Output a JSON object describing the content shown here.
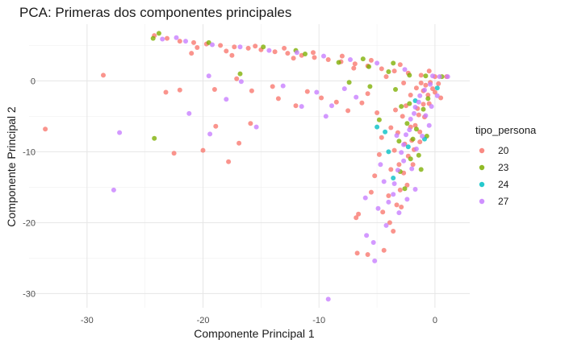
{
  "chart_data": {
    "type": "scatter",
    "title": "PCA: Primeras dos componentes principales",
    "xlabel": "Componente Principal 1",
    "ylabel": "Componente Principal 2",
    "xlim": [
      -35,
      3
    ],
    "ylim": [
      -32,
      8
    ],
    "xticks": [
      -30,
      -20,
      -10,
      0
    ],
    "yticks": [
      0,
      -10,
      -20,
      -30
    ],
    "grid": true,
    "legend": {
      "title": "tipo_persona",
      "position": "right"
    },
    "series": [
      {
        "name": "20",
        "color": "#F8766D",
        "points": [
          [
            -33.6,
            -6.8
          ],
          [
            -28.6,
            0.8
          ],
          [
            -22.5,
            -10.2
          ],
          [
            -20.0,
            -9.8
          ],
          [
            -18.9,
            -6.4
          ],
          [
            -17.8,
            -11.4
          ],
          [
            -16.9,
            -8.8
          ],
          [
            -15.9,
            -6.0
          ],
          [
            -23.2,
            -1.6
          ],
          [
            -22.0,
            -1.3
          ],
          [
            -19.0,
            -1.2
          ],
          [
            -17.1,
            0.3
          ],
          [
            -15.8,
            -1.4
          ],
          [
            -14.0,
            -0.8
          ],
          [
            -13.5,
            -2.5
          ],
          [
            -12.0,
            -3.5
          ],
          [
            -11.0,
            -1.5
          ],
          [
            -9.8,
            -2.4
          ],
          [
            -8.5,
            -3.0
          ],
          [
            -7.5,
            -4.2
          ],
          [
            -6.3,
            -3.1
          ],
          [
            -5.8,
            -1.8
          ],
          [
            -5.0,
            -4.5
          ],
          [
            -5.8,
            -24.5
          ],
          [
            -6.7,
            -24.3
          ],
          [
            -6.8,
            -19.3
          ],
          [
            -6.6,
            -18.8
          ],
          [
            -5.5,
            -15.7
          ],
          [
            -5.2,
            -13.4
          ],
          [
            -4.4,
            -23.9
          ],
          [
            -4.5,
            -18.5
          ],
          [
            -4.0,
            -16.2
          ],
          [
            -3.8,
            -12.5
          ],
          [
            -3.5,
            -9.8
          ],
          [
            -3.2,
            -7.3
          ],
          [
            -2.8,
            -5.0
          ],
          [
            -2.5,
            -3.5
          ],
          [
            -2.1,
            -2.0
          ],
          [
            -1.6,
            -1.0
          ],
          [
            -1.2,
            -0.3
          ],
          [
            -0.8,
            -0.6
          ],
          [
            -0.4,
            -0.2
          ],
          [
            -3.6,
            -21.2
          ],
          [
            -3.9,
            -20.0
          ],
          [
            -3.3,
            -17.5
          ],
          [
            -3.0,
            -15.4
          ],
          [
            -2.7,
            -13.0
          ],
          [
            -2.3,
            -10.6
          ],
          [
            -2.0,
            -8.4
          ],
          [
            -1.7,
            -6.3
          ],
          [
            -1.4,
            -4.8
          ],
          [
            -1.0,
            -3.3
          ],
          [
            -0.6,
            -2.0
          ],
          [
            -0.2,
            -1.1
          ],
          [
            0.3,
            -0.4
          ],
          [
            -3.1,
            -11.8
          ],
          [
            -2.6,
            -8.9
          ],
          [
            -2.1,
            -6.5
          ],
          [
            -1.5,
            -3.9
          ],
          [
            -1.8,
            -9.7
          ],
          [
            -1.3,
            -7.2
          ],
          [
            -0.9,
            -5.1
          ],
          [
            -0.5,
            -3.2
          ],
          [
            0.0,
            -1.6
          ],
          [
            -2.9,
            -17.8
          ],
          [
            -2.4,
            -14.7
          ],
          [
            -1.9,
            -11.8
          ],
          [
            -1.3,
            -8.6
          ],
          [
            -24.2,
            6.4
          ],
          [
            -23.1,
            6.0
          ],
          [
            -22.0,
            5.6
          ],
          [
            -20.8,
            5.4
          ],
          [
            -19.7,
            5.2
          ],
          [
            -18.5,
            5.0
          ],
          [
            -17.3,
            4.8
          ],
          [
            -16.1,
            4.6
          ],
          [
            -15.0,
            4.4
          ],
          [
            -13.8,
            4.1
          ],
          [
            -12.7,
            3.9
          ],
          [
            -11.5,
            3.6
          ],
          [
            -10.4,
            3.3
          ],
          [
            -9.2,
            3.0
          ],
          [
            -8.1,
            2.7
          ],
          [
            -6.9,
            2.4
          ],
          [
            -5.8,
            2.1
          ],
          [
            -4.6,
            1.7
          ],
          [
            -3.5,
            1.4
          ],
          [
            -2.3,
            1.1
          ],
          [
            -1.2,
            0.8
          ],
          [
            0.0,
            0.6
          ],
          [
            1.0,
            0.6
          ],
          [
            -20.5,
            4.7
          ],
          [
            -18.0,
            4.2
          ],
          [
            -15.5,
            4.9
          ],
          [
            -13.0,
            4.6
          ],
          [
            -10.5,
            4.0
          ],
          [
            -8.0,
            3.5
          ],
          [
            -5.5,
            2.9
          ],
          [
            -3.0,
            2.3
          ],
          [
            -0.5,
            1.4
          ],
          [
            -21.0,
            3.9
          ],
          [
            -17.5,
            3.6
          ],
          [
            -12.2,
            3.2
          ],
          [
            -7.0,
            1.8
          ],
          [
            -4.2,
            0.6
          ],
          [
            -2.7,
            -0.3
          ],
          [
            -1.0,
            -1.4
          ],
          [
            0.5,
            -2.4
          ],
          [
            -3.8,
            -6.6
          ],
          [
            -3.4,
            -4.1
          ],
          [
            -4.6,
            -8.0
          ],
          [
            -4.8,
            -10.4
          ]
        ]
      },
      {
        "name": "23",
        "color": "#7CAE00",
        "points": [
          [
            -24.2,
            -8.1
          ],
          [
            -24.3,
            6.0
          ],
          [
            -23.8,
            6.7
          ],
          [
            -16.8,
            1.0
          ],
          [
            -14.8,
            4.8
          ],
          [
            -11.2,
            3.8
          ],
          [
            -8.3,
            2.6
          ],
          [
            -5.7,
            2.0
          ],
          [
            -4.0,
            1.3
          ],
          [
            -2.2,
            0.8
          ],
          [
            -0.8,
            0.7
          ],
          [
            0.6,
            0.6
          ],
          [
            -3.4,
            -1.2
          ],
          [
            -2.9,
            -3.6
          ],
          [
            -2.4,
            -6.0
          ],
          [
            -1.9,
            -8.2
          ],
          [
            -1.4,
            -10.5
          ],
          [
            -1.0,
            -4.0
          ],
          [
            -0.6,
            -2.5
          ],
          [
            -3.0,
            -12.8
          ],
          [
            -2.6,
            -15.2
          ],
          [
            -4.8,
            -5.5
          ],
          [
            -5.6,
            -0.8
          ],
          [
            -7.4,
            -0.2
          ],
          [
            -1.6,
            -6.8
          ],
          [
            -0.7,
            -7.8
          ],
          [
            -2.1,
            -11.0
          ],
          [
            -1.2,
            -12.5
          ],
          [
            -19.5,
            5.4
          ],
          [
            -12.0,
            4.3
          ],
          [
            -6.2,
            3.1
          ],
          [
            -3.6,
            2.5
          ],
          [
            -3.1,
            -8.5
          ],
          [
            -2.2,
            -3.2
          ]
        ]
      },
      {
        "name": "24",
        "color": "#00BFC4",
        "points": [
          [
            -5.0,
            -6.5
          ],
          [
            -4.3,
            -7.2
          ],
          [
            -4.0,
            -10.0
          ],
          [
            -1.7,
            -2.8
          ],
          [
            -0.9,
            -8.2
          ],
          [
            -2.3,
            -9.3
          ],
          [
            0.2,
            -1.0
          ],
          [
            -3.6,
            -13.7
          ]
        ]
      },
      {
        "name": "27",
        "color": "#C77CFF",
        "points": [
          [
            -27.7,
            -15.4
          ],
          [
            -27.2,
            -7.3
          ],
          [
            -22.3,
            6.1
          ],
          [
            -21.2,
            -4.6
          ],
          [
            -19.4,
            -7.5
          ],
          [
            -18.0,
            -2.6
          ],
          [
            -15.4,
            -6.5
          ],
          [
            -16.7,
            -0.1
          ],
          [
            -19.5,
            0.7
          ],
          [
            -13.1,
            -0.7
          ],
          [
            -11.5,
            -3.6
          ],
          [
            -10.2,
            -1.6
          ],
          [
            -9.4,
            -5.0
          ],
          [
            -9.2,
            -30.8
          ],
          [
            -8.9,
            -3.5
          ],
          [
            -7.8,
            -1.1
          ],
          [
            -6.8,
            -2.3
          ],
          [
            -6.0,
            -16.5
          ],
          [
            -5.9,
            -21.8
          ],
          [
            -5.3,
            -22.8
          ],
          [
            -5.2,
            -25.4
          ],
          [
            -4.9,
            -18.0
          ],
          [
            -4.4,
            -14.2
          ],
          [
            -4.7,
            -11.8
          ],
          [
            -4.2,
            -20.4
          ],
          [
            -4.0,
            -17.1
          ],
          [
            -3.6,
            -16.0
          ],
          [
            -3.5,
            -14.5
          ],
          [
            -3.2,
            -12.6
          ],
          [
            -2.9,
            -10.1
          ],
          [
            -2.5,
            -7.6
          ],
          [
            -2.1,
            -5.4
          ],
          [
            -1.7,
            -3.7
          ],
          [
            -1.3,
            -2.1
          ],
          [
            -0.9,
            -1.3
          ],
          [
            -0.4,
            -0.5
          ],
          [
            0.4,
            0.6
          ],
          [
            1.1,
            0.6
          ],
          [
            -2.7,
            -9.0
          ],
          [
            -2.2,
            -6.9
          ],
          [
            -1.8,
            -4.6
          ],
          [
            -1.4,
            -3.0
          ],
          [
            -0.8,
            -4.9
          ],
          [
            -0.3,
            -3.6
          ],
          [
            0.2,
            -2.1
          ],
          [
            -1.1,
            -7.8
          ],
          [
            -1.6,
            -9.6
          ],
          [
            -2.0,
            -12.4
          ],
          [
            -2.4,
            -16.7
          ],
          [
            -3.1,
            -18.6
          ],
          [
            -23.5,
            5.9
          ],
          [
            -21.5,
            5.6
          ],
          [
            -19.2,
            5.1
          ],
          [
            -16.8,
            4.8
          ],
          [
            -14.3,
            4.3
          ],
          [
            -11.9,
            4.0
          ],
          [
            -9.6,
            3.5
          ],
          [
            -7.3,
            3.0
          ],
          [
            -5.0,
            2.5
          ],
          [
            -2.6,
            1.6
          ],
          [
            -0.2,
            0.7
          ],
          [
            -1.7,
            -15.3
          ],
          [
            -2.7,
            -11.3
          ],
          [
            -3.3,
            -7.7
          ],
          [
            -0.5,
            -6.3
          ]
        ]
      }
    ]
  }
}
